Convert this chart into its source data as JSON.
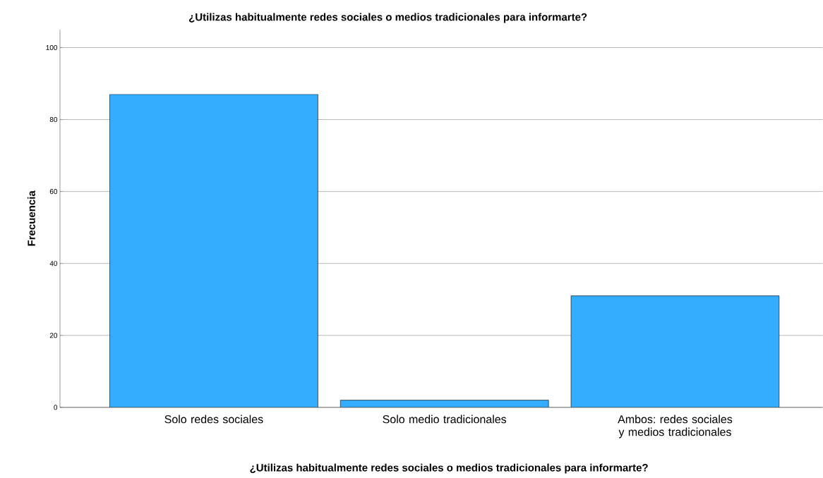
{
  "chart_data": {
    "type": "bar",
    "title": "¿Utilizas habitualmente redes sociales o medios tradicionales para informarte?",
    "xlabel": "¿Utilizas habitualmente redes sociales o medios tradicionales para informarte?",
    "ylabel": "Frecuencia",
    "categories": [
      "Solo redes sociales",
      "Solo medio tradicionales",
      "Ambos: redes sociales y medios tradicionales"
    ],
    "values": [
      87,
      2,
      31
    ],
    "color": "#33adff",
    "ylim": [
      0,
      105
    ],
    "yticks": [
      0,
      20,
      40,
      60,
      80,
      100
    ],
    "grid": "y"
  }
}
